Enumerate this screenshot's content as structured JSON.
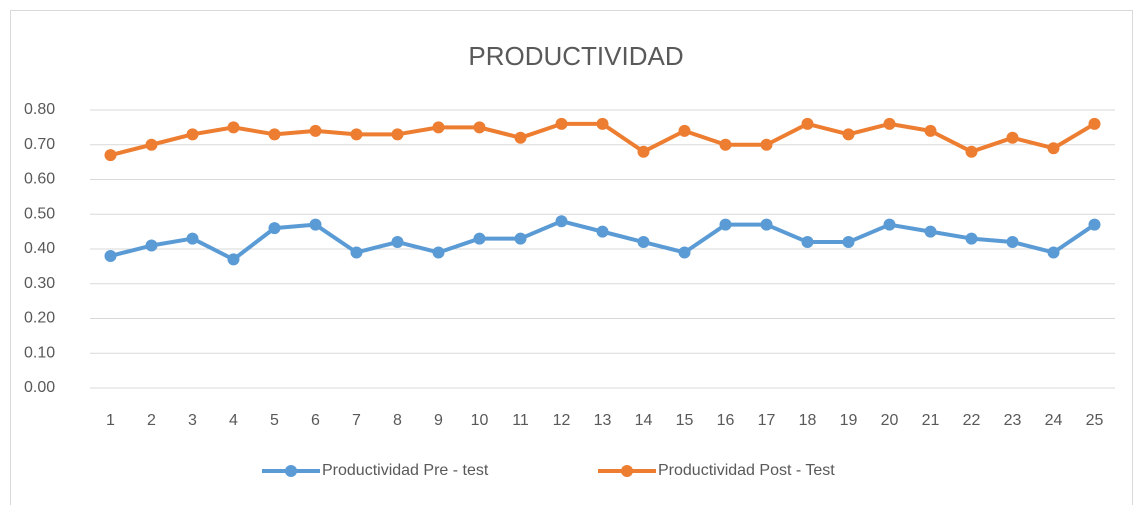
{
  "chart_data": {
    "type": "line",
    "title": "PRODUCTIVIDAD",
    "categories": [
      "1",
      "2",
      "3",
      "4",
      "5",
      "6",
      "7",
      "8",
      "9",
      "10",
      "11",
      "12",
      "13",
      "14",
      "15",
      "16",
      "17",
      "18",
      "19",
      "20",
      "21",
      "22",
      "23",
      "24",
      "25"
    ],
    "series": [
      {
        "name": "Productividad Pre - test",
        "color": "#5b9bd5",
        "values": [
          0.38,
          0.41,
          0.43,
          0.37,
          0.46,
          0.47,
          0.39,
          0.42,
          0.39,
          0.43,
          0.43,
          0.48,
          0.45,
          0.42,
          0.39,
          0.47,
          0.47,
          0.42,
          0.42,
          0.47,
          0.45,
          0.43,
          0.42,
          0.39,
          0.47
        ]
      },
      {
        "name": "Productividad Post - Test",
        "color": "#ed7d31",
        "values": [
          0.67,
          0.7,
          0.73,
          0.75,
          0.73,
          0.74,
          0.73,
          0.73,
          0.75,
          0.75,
          0.72,
          0.76,
          0.76,
          0.68,
          0.74,
          0.7,
          0.7,
          0.76,
          0.73,
          0.76,
          0.74,
          0.68,
          0.72,
          0.69,
          0.76
        ]
      }
    ],
    "ylim": [
      0,
      0.8
    ],
    "yticks": [
      {
        "value": 0,
        "label": "0.00"
      },
      {
        "value": 0.1,
        "label": "0.10"
      },
      {
        "value": 0.2,
        "label": "0.20"
      },
      {
        "value": 0.3,
        "label": "0.30"
      },
      {
        "value": 0.4,
        "label": "0.40"
      },
      {
        "value": 0.5,
        "label": "0.50"
      },
      {
        "value": 0.6,
        "label": "0.60"
      },
      {
        "value": 0.7,
        "label": "0.70"
      },
      {
        "value": 0.8,
        "label": "0.80"
      }
    ],
    "grid": true,
    "legend": "bottom"
  }
}
